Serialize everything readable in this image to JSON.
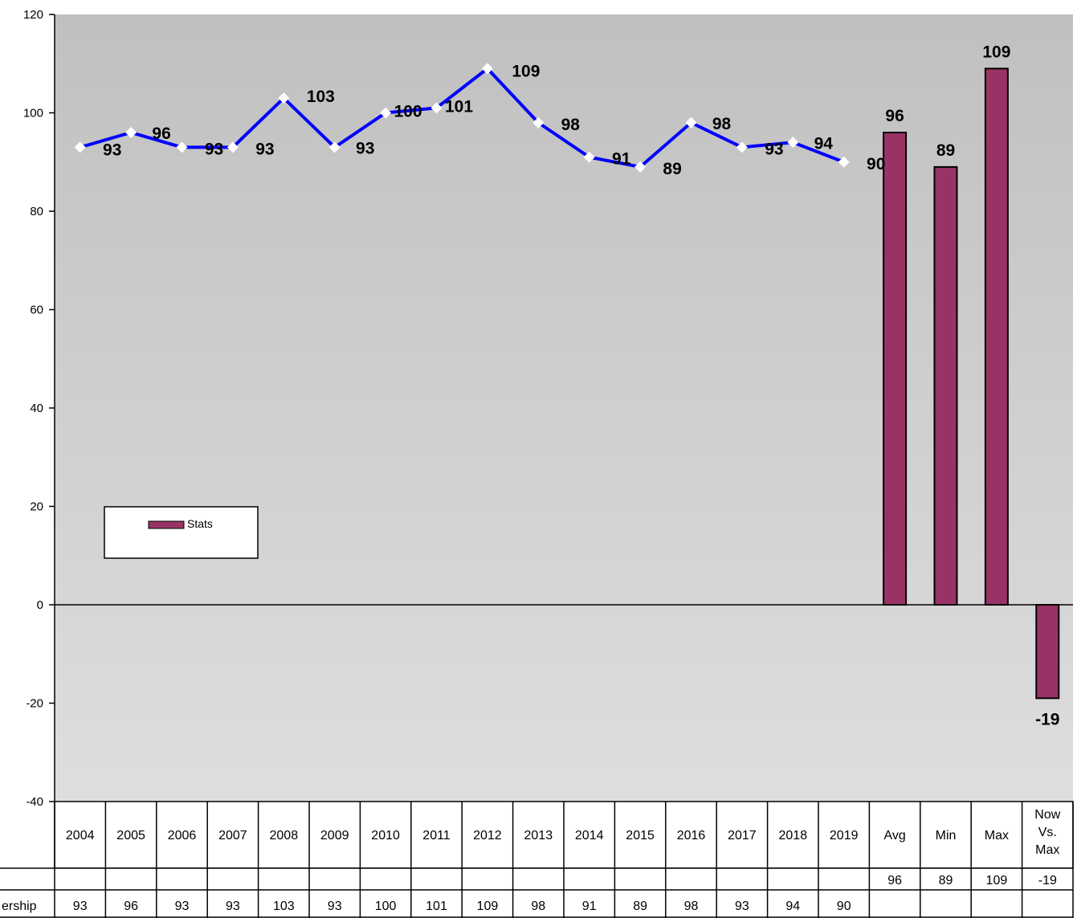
{
  "chart_data": {
    "type": "bar",
    "categories": [
      "2004",
      "2005",
      "2006",
      "2007",
      "2008",
      "2009",
      "2010",
      "2011",
      "2012",
      "2013",
      "2014",
      "2015",
      "2016",
      "2017",
      "2018",
      "2019",
      "Avg",
      "Min",
      "Max",
      "Now Vs. Max"
    ],
    "ylim": [
      -40,
      120
    ],
    "yticks": [
      -40,
      -20,
      0,
      20,
      40,
      60,
      80,
      100,
      120
    ],
    "series": [
      {
        "name": "Stats",
        "type": "bar",
        "color": "#993366",
        "values": [
          null,
          null,
          null,
          null,
          null,
          null,
          null,
          null,
          null,
          null,
          null,
          null,
          null,
          null,
          null,
          null,
          96,
          89,
          109,
          -19
        ]
      },
      {
        "name": "Ridership",
        "type": "line",
        "color": "#0000ff",
        "values": [
          93,
          96,
          93,
          93,
          103,
          93,
          100,
          101,
          109,
          98,
          91,
          89,
          98,
          93,
          94,
          90,
          null,
          null,
          null,
          null
        ]
      }
    ],
    "table_row_labels": [
      "",
      "ership"
    ],
    "legend": {
      "entries": [
        "Stats"
      ],
      "position": "lower-left"
    },
    "plot_background": "#c0c0c0",
    "grid": false
  }
}
